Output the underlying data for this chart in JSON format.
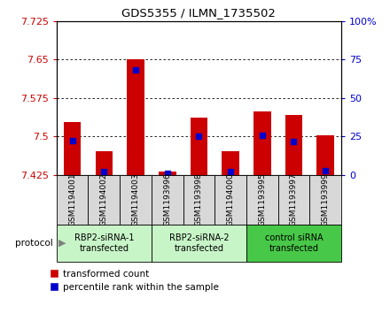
{
  "title": "GDS5355 / ILMN_1735502",
  "samples": [
    "GSM1194001",
    "GSM1194002",
    "GSM1194003",
    "GSM1193996",
    "GSM1193998",
    "GSM1194000",
    "GSM1193995",
    "GSM1193997",
    "GSM1193999"
  ],
  "red_values": [
    7.528,
    7.472,
    7.65,
    7.432,
    7.536,
    7.472,
    7.548,
    7.542,
    7.502
  ],
  "blue_values": [
    7.492,
    7.432,
    7.63,
    7.428,
    7.5,
    7.432,
    7.502,
    7.49,
    7.433
  ],
  "ymin": 7.425,
  "ymax": 7.725,
  "yticks": [
    7.425,
    7.5,
    7.575,
    7.65,
    7.725
  ],
  "ytick_labels": [
    "7.425",
    "7.5",
    "7.575",
    "7.65",
    "7.725"
  ],
  "y2ticks": [
    0,
    25,
    50,
    75,
    100
  ],
  "y2tick_labels": [
    "0",
    "25",
    "50",
    "75",
    "100%"
  ],
  "y2min": 0,
  "y2max": 100,
  "protocol_groups": [
    {
      "label": "RBP2-siRNA-1\ntransfected",
      "start": 0,
      "end": 3,
      "color": "#c8f5c8"
    },
    {
      "label": "RBP2-siRNA-2\ntransfected",
      "start": 3,
      "end": 6,
      "color": "#c8f5c8"
    },
    {
      "label": "control siRNA\ntransfected",
      "start": 6,
      "end": 9,
      "color": "#48c848"
    }
  ],
  "bar_color": "#cc0000",
  "blue_color": "#0000cc",
  "bar_width": 0.55,
  "sample_bg_color": "#d8d8d8",
  "plot_bg": "#ffffff",
  "grid_color": "#000000",
  "ylabel_color": "#cc0000",
  "y2label_color": "#0000cc",
  "grid_yticks": [
    7.5,
    7.575,
    7.65
  ]
}
